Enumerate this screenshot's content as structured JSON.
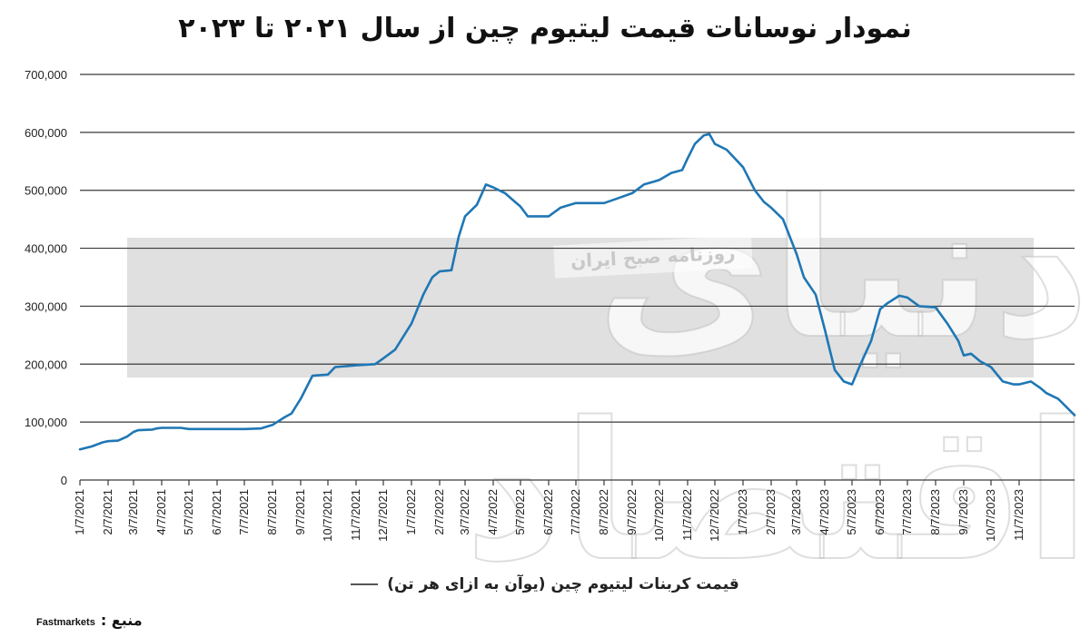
{
  "chart_data": {
    "type": "line",
    "title": "نمودار نوسانات قیمت لیتیوم چین از سال ۲۰۲۱ تا ۲۰۲۳",
    "xlabel": "",
    "ylabel": "",
    "ylim": [
      0,
      700000
    ],
    "yticks": [
      "0",
      "100,000",
      "200,000",
      "300,000",
      "400,000",
      "500,000",
      "600,000",
      "700,000"
    ],
    "xticks": [
      "1/7/2021",
      "2/7/2021",
      "3/7/2021",
      "4/7/2021",
      "5/7/2021",
      "6/7/2021",
      "7/7/2021",
      "8/7/2021",
      "9/7/2021",
      "10/7/2021",
      "11/7/2021",
      "12/7/2021",
      "1/7/2022",
      "2/7/2022",
      "3/7/2022",
      "4/7/2022",
      "5/7/2022",
      "6/7/2022",
      "7/7/2022",
      "8/7/2022",
      "9/7/2022",
      "10/7/2022",
      "11/7/2022",
      "12/7/2022",
      "1/7/2023",
      "2/7/2023",
      "3/7/2023",
      "4/7/2023",
      "5/7/2023",
      "6/7/2023",
      "7/7/2023",
      "8/7/2023",
      "9/7/2023",
      "10/7/2023",
      "11/7/2023"
    ],
    "grid": true,
    "legend_position": "bottom",
    "line_color": "#1f77b4",
    "series": [
      {
        "name": "قیمت کربنات لیتیوم چین (یوآن به ازای هر تن)",
        "points": [
          [
            "1/7/2021",
            53000
          ],
          [
            "1/20/2021",
            58000
          ],
          [
            "2/1/2021",
            65000
          ],
          [
            "2/7/2021",
            67000
          ],
          [
            "2/18/2021",
            68000
          ],
          [
            "2/28/2021",
            75000
          ],
          [
            "3/7/2021",
            83000
          ],
          [
            "3/12/2021",
            86000
          ],
          [
            "3/28/2021",
            87000
          ],
          [
            "4/1/2021",
            89000
          ],
          [
            "4/7/2021",
            90000
          ],
          [
            "4/28/2021",
            90000
          ],
          [
            "5/7/2021",
            88000
          ],
          [
            "6/7/2021",
            88000
          ],
          [
            "7/7/2021",
            88000
          ],
          [
            "7/25/2021",
            89000
          ],
          [
            "8/7/2021",
            95000
          ],
          [
            "8/20/2021",
            108000
          ],
          [
            "8/28/2021",
            115000
          ],
          [
            "9/7/2021",
            140000
          ],
          [
            "9/20/2021",
            180000
          ],
          [
            "10/7/2021",
            182000
          ],
          [
            "10/15/2021",
            195000
          ],
          [
            "11/7/2021",
            198000
          ],
          [
            "11/28/2021",
            200000
          ],
          [
            "12/7/2021",
            210000
          ],
          [
            "12/20/2021",
            225000
          ],
          [
            "1/7/2022",
            270000
          ],
          [
            "1/20/2022",
            320000
          ],
          [
            "1/30/2022",
            350000
          ],
          [
            "2/7/2022",
            360000
          ],
          [
            "2/20/2022",
            362000
          ],
          [
            "2/28/2022",
            420000
          ],
          [
            "3/7/2022",
            455000
          ],
          [
            "3/20/2022",
            475000
          ],
          [
            "3/30/2022",
            510000
          ],
          [
            "4/7/2022",
            505000
          ],
          [
            "4/20/2022",
            495000
          ],
          [
            "5/1/2022",
            480000
          ],
          [
            "5/7/2022",
            472000
          ],
          [
            "5/15/2022",
            455000
          ],
          [
            "6/7/2022",
            455000
          ],
          [
            "6/20/2022",
            470000
          ],
          [
            "7/7/2022",
            478000
          ],
          [
            "8/7/2022",
            478000
          ],
          [
            "8/20/2022",
            485000
          ],
          [
            "9/7/2022",
            495000
          ],
          [
            "9/20/2022",
            510000
          ],
          [
            "10/1/2022",
            515000
          ],
          [
            "10/7/2022",
            518000
          ],
          [
            "10/20/2022",
            530000
          ],
          [
            "11/1/2022",
            535000
          ],
          [
            "11/7/2022",
            555000
          ],
          [
            "11/15/2022",
            580000
          ],
          [
            "11/25/2022",
            595000
          ],
          [
            "12/1/2022",
            597000
          ],
          [
            "12/7/2022",
            580000
          ],
          [
            "12/20/2022",
            570000
          ],
          [
            "1/7/2023",
            540000
          ],
          [
            "1/20/2023",
            500000
          ],
          [
            "1/30/2023",
            480000
          ],
          [
            "2/7/2023",
            470000
          ],
          [
            "2/20/2023",
            450000
          ],
          [
            "3/7/2023",
            390000
          ],
          [
            "3/15/2023",
            350000
          ],
          [
            "3/28/2023",
            320000
          ],
          [
            "4/7/2023",
            260000
          ],
          [
            "4/18/2023",
            190000
          ],
          [
            "4/28/2023",
            170000
          ],
          [
            "5/7/2023",
            165000
          ],
          [
            "5/15/2023",
            195000
          ],
          [
            "5/28/2023",
            240000
          ],
          [
            "6/7/2023",
            295000
          ],
          [
            "6/15/2023",
            305000
          ],
          [
            "6/28/2023",
            318000
          ],
          [
            "7/7/2023",
            315000
          ],
          [
            "7/20/2023",
            300000
          ],
          [
            "8/7/2023",
            298000
          ],
          [
            "8/20/2023",
            270000
          ],
          [
            "9/1/2023",
            240000
          ],
          [
            "9/7/2023",
            215000
          ],
          [
            "9/15/2023",
            218000
          ],
          [
            "9/25/2023",
            205000
          ],
          [
            "10/7/2023",
            195000
          ],
          [
            "10/20/2023",
            170000
          ],
          [
            "11/1/2023",
            165000
          ],
          [
            "11/7/2023",
            165000
          ],
          [
            "11/20/2023",
            170000
          ],
          [
            "12/1/2023",
            158000
          ],
          [
            "12/7/2023",
            150000
          ],
          [
            "12/20/2023",
            140000
          ],
          [
            "1/7/2024",
            112000
          ]
        ]
      }
    ]
  },
  "legend": {
    "label": "قیمت کربنات لیتیوم چین (یوآن به ازای هر تن)"
  },
  "source": {
    "label": "منبع :",
    "value": "Fastmarkets"
  },
  "watermark": {
    "logo_text": "دنیای اقتصاد",
    "band_text": "روزنامه صبح ایران"
  }
}
